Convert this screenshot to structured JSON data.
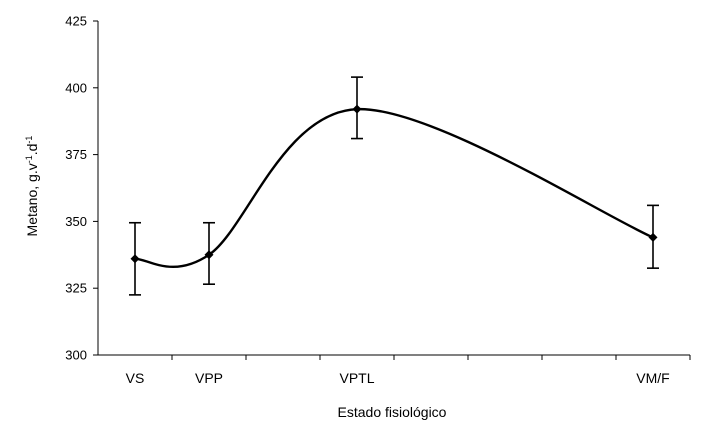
{
  "chart_data": {
    "type": "line",
    "title": "",
    "xlabel": "Estado fisiológico",
    "ylabel": {
      "main": "Metano, g.v",
      "sup1": "-1",
      "mid": ".d",
      "sup2": "-1"
    },
    "categories": [
      "VS",
      "VPP",
      "VPTL",
      "VM/F"
    ],
    "x_positions": [
      0.5,
      1.5,
      3.5,
      7.5
    ],
    "x_range": [
      0,
      8
    ],
    "ylim": [
      300,
      425
    ],
    "yticks": [
      300,
      325,
      350,
      375,
      400,
      425
    ],
    "smooth": true,
    "grid": false,
    "legend": "none",
    "series": [
      {
        "values": [
          336,
          337.5,
          392,
          344
        ],
        "error_upper": [
          349.5,
          349.5,
          404,
          356
        ],
        "error_lower": [
          322.5,
          326.5,
          381,
          332.5
        ],
        "color": "#000000",
        "marker": "diamond"
      }
    ]
  }
}
